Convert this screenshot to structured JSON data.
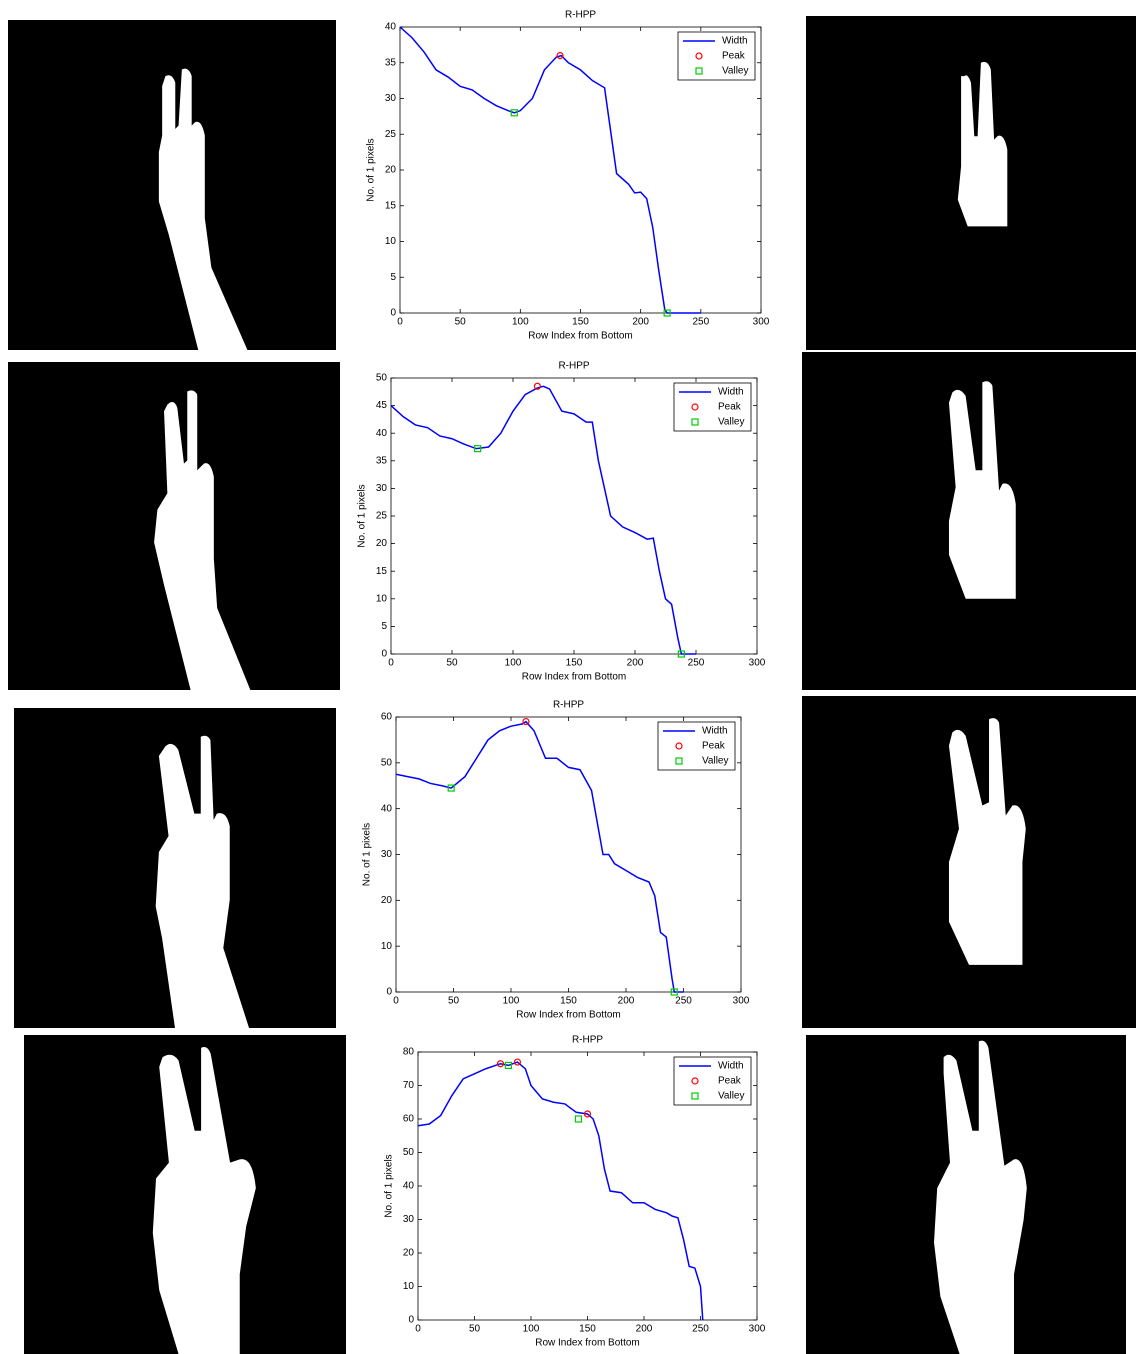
{
  "chart_data": [
    {
      "type": "line",
      "title": "R-HPP",
      "x_label": "Row Index from Bottom",
      "y_label": "No. of 1 pixels",
      "xlim": [
        0,
        300
      ],
      "ylim": [
        0,
        40
      ],
      "xticks": [
        0,
        50,
        100,
        150,
        200,
        250,
        300
      ],
      "yticks": [
        0,
        5,
        10,
        15,
        20,
        25,
        30,
        35,
        40
      ],
      "series": [
        {
          "name": "Width",
          "color": "#0000ff",
          "x": [
            0,
            10,
            20,
            30,
            40,
            50,
            60,
            70,
            80,
            90,
            95,
            100,
            110,
            120,
            130,
            134,
            140,
            150,
            160,
            170,
            180,
            190,
            195,
            200,
            205,
            210,
            215,
            220,
            222,
            230,
            250
          ],
          "values": [
            40,
            38.5,
            36.5,
            34,
            33,
            31.7,
            31.2,
            30,
            29,
            28.3,
            28,
            28.3,
            30,
            34,
            35.8,
            36,
            35,
            34,
            32.5,
            31.5,
            19.5,
            18,
            16.8,
            16.9,
            16,
            12,
            6,
            0.5,
            0,
            0,
            0
          ]
        },
        {
          "name": "Peak",
          "color": "#ff0000",
          "marker": "circle",
          "x": [
            133
          ],
          "values": [
            36
          ]
        },
        {
          "name": "Valley",
          "color": "#00cc00",
          "marker": "square",
          "x": [
            95,
            222
          ],
          "values": [
            28,
            0
          ]
        }
      ]
    },
    {
      "type": "line",
      "title": "R-HPP",
      "x_label": "Row Index from Bottom",
      "y_label": "No. of 1 pixels",
      "xlim": [
        0,
        300
      ],
      "ylim": [
        0,
        50
      ],
      "xticks": [
        0,
        50,
        100,
        150,
        200,
        250,
        300
      ],
      "yticks": [
        0,
        5,
        10,
        15,
        20,
        25,
        30,
        35,
        40,
        45,
        50
      ],
      "series": [
        {
          "name": "Width",
          "color": "#0000ff",
          "x": [
            0,
            10,
            20,
            30,
            40,
            50,
            60,
            70,
            80,
            90,
            100,
            110,
            120,
            125,
            130,
            140,
            150,
            160,
            165,
            170,
            180,
            190,
            200,
            210,
            215,
            220,
            225,
            230,
            235,
            238,
            250
          ],
          "values": [
            45,
            43,
            41.5,
            41,
            39.5,
            39,
            38,
            37.2,
            37.5,
            40,
            44,
            47,
            48.2,
            48.5,
            48,
            44,
            43.5,
            42,
            42,
            35,
            25,
            23,
            22,
            20.8,
            21,
            15,
            10,
            9,
            3,
            0,
            0
          ]
        },
        {
          "name": "Peak",
          "color": "#ff0000",
          "marker": "circle",
          "x": [
            120
          ],
          "values": [
            48.5
          ]
        },
        {
          "name": "Valley",
          "color": "#00cc00",
          "marker": "square",
          "x": [
            71,
            238
          ],
          "values": [
            37.2,
            0
          ]
        }
      ]
    },
    {
      "type": "line",
      "title": "R-HPP",
      "x_label": "Row Index from Bottom",
      "y_label": "No. of 1 pixels",
      "xlim": [
        0,
        300
      ],
      "ylim": [
        0,
        60
      ],
      "xticks": [
        0,
        50,
        100,
        150,
        200,
        250,
        300
      ],
      "yticks": [
        0,
        10,
        20,
        30,
        40,
        50,
        60
      ],
      "series": [
        {
          "name": "Width",
          "color": "#0000ff",
          "x": [
            0,
            10,
            20,
            30,
            40,
            48,
            60,
            70,
            80,
            90,
            100,
            110,
            113,
            120,
            130,
            140,
            150,
            160,
            170,
            180,
            185,
            190,
            200,
            210,
            220,
            225,
            230,
            235,
            240,
            242,
            250
          ],
          "values": [
            47.5,
            47,
            46.5,
            45.5,
            45,
            44.5,
            47,
            51,
            55,
            57,
            58,
            58.5,
            59,
            57,
            51,
            51,
            49,
            48.5,
            44,
            30,
            30,
            28,
            26.5,
            25,
            24,
            21,
            13,
            12,
            3,
            0,
            0
          ]
        },
        {
          "name": "Peak",
          "color": "#ff0000",
          "marker": "circle",
          "x": [
            113
          ],
          "values": [
            59
          ]
        },
        {
          "name": "Valley",
          "color": "#00cc00",
          "marker": "square",
          "x": [
            48,
            242
          ],
          "values": [
            44.5,
            0
          ]
        }
      ]
    },
    {
      "type": "line",
      "title": "R-HPP",
      "x_label": "Row Index from Bottom",
      "y_label": "No. of 1 pixels",
      "xlim": [
        0,
        300
      ],
      "ylim": [
        0,
        80
      ],
      "xticks": [
        0,
        50,
        100,
        150,
        200,
        250,
        300
      ],
      "yticks": [
        0,
        10,
        20,
        30,
        40,
        50,
        60,
        70,
        80
      ],
      "series": [
        {
          "name": "Width",
          "color": "#0000ff",
          "x": [
            0,
            10,
            20,
            30,
            40,
            50,
            60,
            73,
            80,
            88,
            95,
            100,
            110,
            120,
            130,
            140,
            150,
            155,
            160,
            165,
            170,
            180,
            190,
            200,
            210,
            220,
            225,
            230,
            235,
            240,
            245,
            250,
            252
          ],
          "values": [
            58,
            58.5,
            61,
            67,
            72,
            73.5,
            75,
            76.5,
            76,
            77,
            75,
            70,
            66,
            65,
            64.5,
            62,
            61.5,
            60,
            55,
            45,
            38.5,
            38,
            35,
            35,
            33,
            32,
            31,
            30.5,
            24,
            16,
            15.5,
            10,
            0
          ]
        },
        {
          "name": "Peak",
          "color": "#ff0000",
          "marker": "circle",
          "x": [
            73,
            88,
            150
          ],
          "values": [
            76.5,
            77,
            61.5
          ]
        },
        {
          "name": "Valley",
          "color": "#00cc00",
          "marker": "square",
          "x": [
            80,
            142
          ],
          "values": [
            76,
            60
          ]
        }
      ]
    }
  ]
}
